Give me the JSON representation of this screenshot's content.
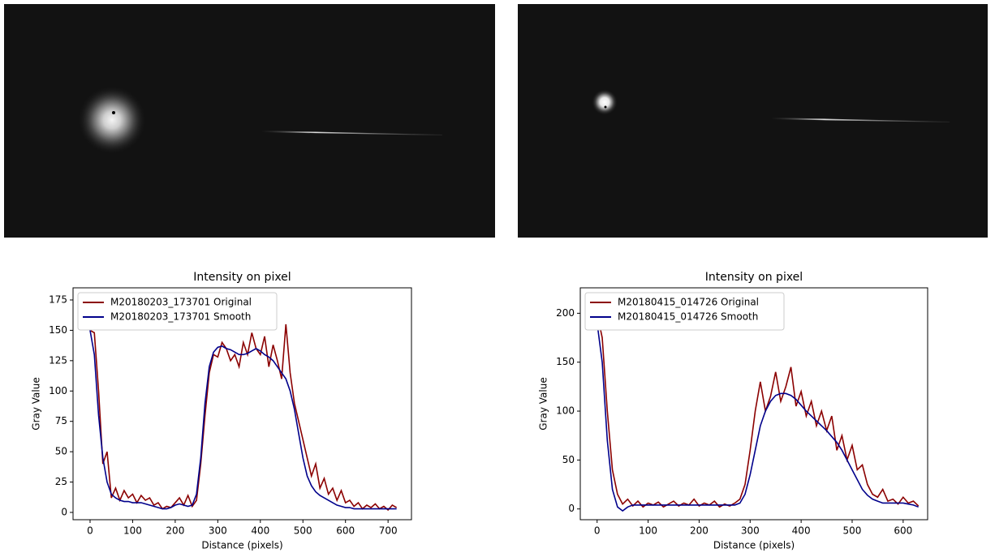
{
  "chart_data": [
    {
      "type": "line",
      "title": "Intensity on pixel",
      "title_color": "#1a1a8c",
      "x_label": "Distance (pixels)",
      "y_label": "Gray Value",
      "x": [
        0,
        10,
        20,
        30,
        40,
        50,
        60,
        70,
        80,
        90,
        100,
        110,
        120,
        130,
        140,
        150,
        160,
        170,
        180,
        190,
        200,
        210,
        220,
        230,
        240,
        250,
        260,
        270,
        280,
        290,
        300,
        310,
        320,
        330,
        340,
        350,
        360,
        370,
        380,
        390,
        400,
        410,
        420,
        430,
        440,
        450,
        460,
        470,
        480,
        490,
        500,
        510,
        520,
        530,
        540,
        550,
        560,
        570,
        580,
        590,
        600,
        610,
        620,
        630,
        640,
        650,
        660,
        670,
        680,
        690,
        700,
        710,
        720
      ],
      "series": [
        {
          "name": "M20180203_173701 Original",
          "color": "#8b0000",
          "values": [
            150,
            148,
            100,
            40,
            50,
            12,
            20,
            10,
            18,
            12,
            15,
            8,
            14,
            10,
            12,
            6,
            8,
            3,
            5,
            4,
            8,
            12,
            6,
            14,
            5,
            10,
            40,
            80,
            115,
            130,
            128,
            140,
            135,
            125,
            130,
            120,
            140,
            130,
            148,
            135,
            130,
            145,
            120,
            138,
            125,
            110,
            155,
            115,
            90,
            75,
            60,
            45,
            30,
            40,
            20,
            28,
            15,
            20,
            10,
            18,
            8,
            10,
            5,
            8,
            3,
            6,
            4,
            7,
            3,
            5,
            2,
            6,
            4
          ]
        },
        {
          "name": "M20180203_173701 Smooth",
          "color": "#00008b",
          "values": [
            150,
            130,
            80,
            45,
            25,
            15,
            12,
            10,
            9,
            9,
            8,
            8,
            8,
            7,
            6,
            5,
            4,
            3,
            3,
            4,
            6,
            7,
            6,
            5,
            6,
            15,
            45,
            90,
            120,
            132,
            136,
            137,
            135,
            134,
            132,
            130,
            130,
            131,
            133,
            135,
            133,
            130,
            128,
            125,
            120,
            115,
            110,
            100,
            85,
            65,
            45,
            30,
            22,
            17,
            14,
            12,
            10,
            8,
            6,
            5,
            4,
            4,
            3,
            3,
            3,
            3,
            3,
            3,
            3,
            3,
            3,
            3,
            3
          ]
        }
      ],
      "xlim": [
        -40,
        755
      ],
      "ylim": [
        -6,
        185
      ],
      "xticks": [
        0,
        100,
        200,
        300,
        400,
        500,
        600,
        700
      ],
      "yticks": [
        0,
        25,
        50,
        75,
        100,
        125,
        150,
        175
      ],
      "legend": "upper left"
    },
    {
      "type": "line",
      "title": "Intensity on pixel",
      "title_color": "#1a1a8c",
      "x_label": "Distance (pixels)",
      "y_label": "Gray Value",
      "x": [
        0,
        10,
        20,
        30,
        40,
        50,
        60,
        70,
        80,
        90,
        100,
        110,
        120,
        130,
        140,
        150,
        160,
        170,
        180,
        190,
        200,
        210,
        220,
        230,
        240,
        250,
        260,
        270,
        280,
        290,
        300,
        310,
        320,
        330,
        340,
        350,
        360,
        370,
        380,
        390,
        400,
        410,
        420,
        430,
        440,
        450,
        460,
        470,
        480,
        490,
        500,
        510,
        520,
        530,
        540,
        550,
        560,
        570,
        580,
        590,
        600,
        610,
        620,
        630
      ],
      "series": [
        {
          "name": "M20180415_014726 Original",
          "color": "#8b0000",
          "values": [
            200,
            175,
            100,
            40,
            15,
            5,
            10,
            3,
            8,
            2,
            6,
            4,
            7,
            2,
            5,
            8,
            3,
            6,
            4,
            10,
            3,
            6,
            4,
            8,
            2,
            5,
            3,
            6,
            10,
            25,
            60,
            100,
            130,
            100,
            115,
            140,
            110,
            125,
            145,
            105,
            120,
            95,
            110,
            85,
            100,
            80,
            95,
            60,
            75,
            50,
            65,
            40,
            45,
            25,
            15,
            12,
            20,
            8,
            10,
            5,
            12,
            6,
            8,
            3
          ]
        },
        {
          "name": "M20180415_014726 Smooth",
          "color": "#00008b",
          "values": [
            190,
            150,
            70,
            20,
            2,
            -2,
            2,
            4,
            4,
            4,
            4,
            4,
            4,
            4,
            4,
            4,
            4,
            4,
            4,
            4,
            4,
            4,
            4,
            4,
            4,
            4,
            4,
            4,
            6,
            15,
            35,
            60,
            85,
            100,
            110,
            116,
            118,
            118,
            116,
            112,
            106,
            100,
            95,
            90,
            85,
            80,
            74,
            68,
            60,
            50,
            40,
            30,
            20,
            14,
            10,
            8,
            6,
            6,
            6,
            6,
            6,
            5,
            4,
            2
          ]
        }
      ],
      "xlim": [
        -33,
        648
      ],
      "ylim": [
        -11,
        226
      ],
      "xticks": [
        0,
        100,
        200,
        300,
        400,
        500,
        600
      ],
      "yticks": [
        0,
        50,
        100,
        150,
        200
      ],
      "legend": "upper left"
    }
  ]
}
